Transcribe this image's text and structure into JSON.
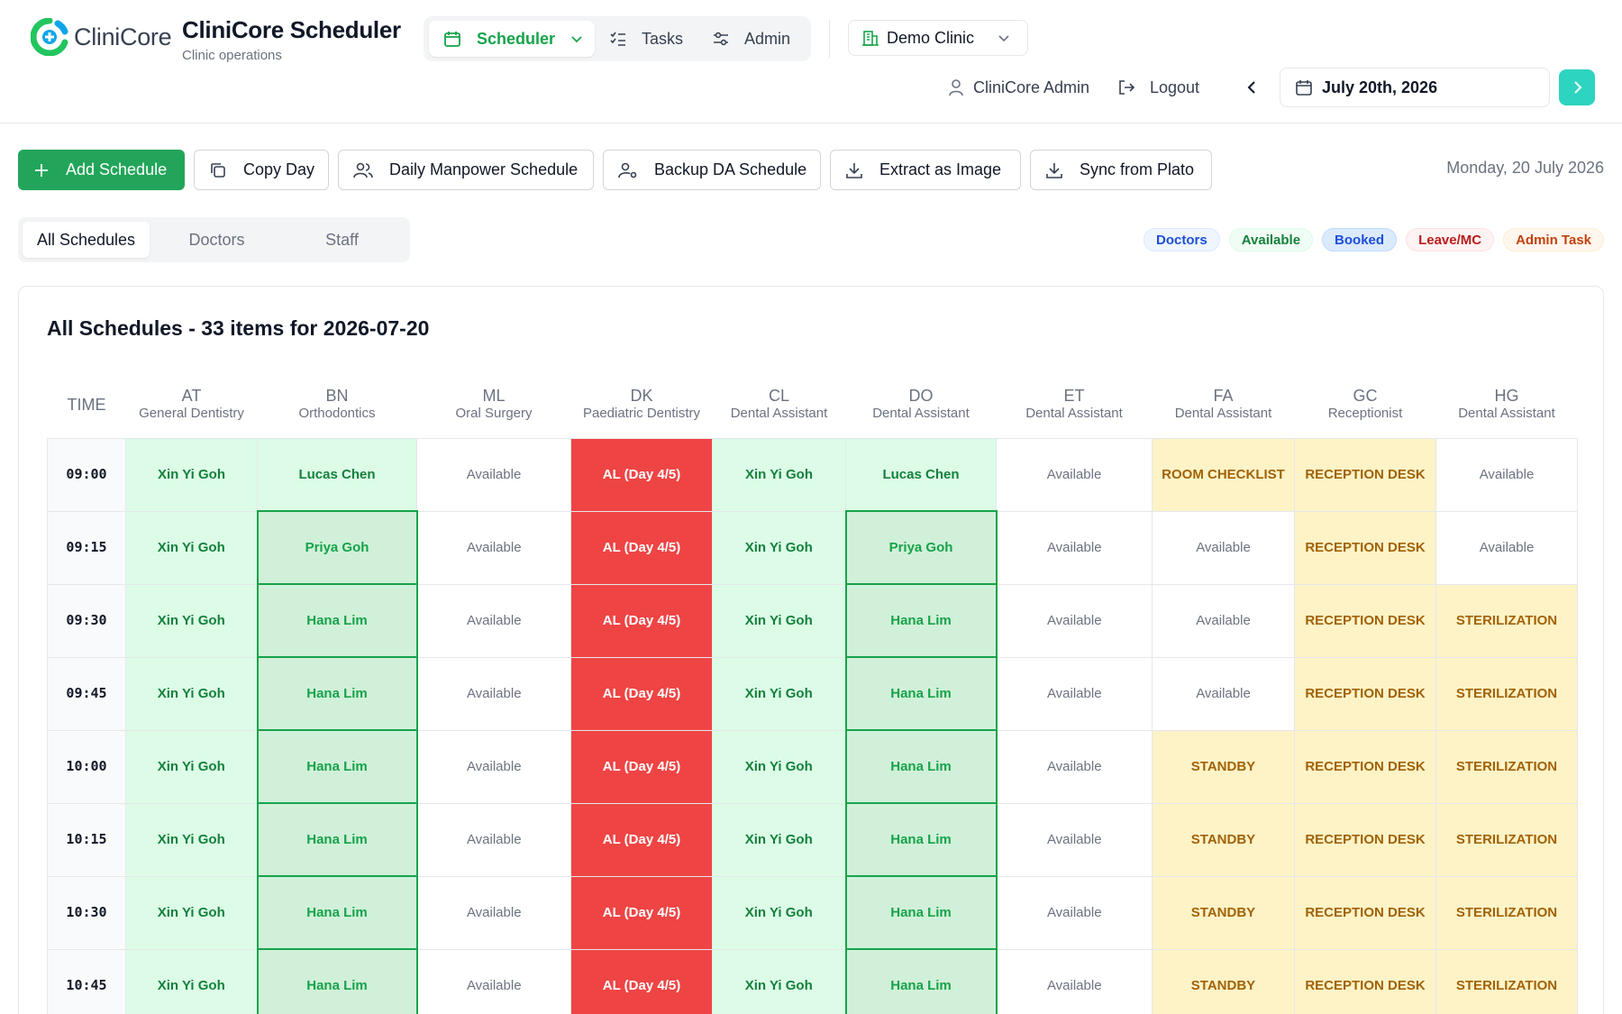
{
  "brand": {
    "logo_text": "CliniCore",
    "title": "CliniCore Scheduler",
    "subtitle": "Clinic operations"
  },
  "nav": {
    "scheduler": "Scheduler",
    "tasks": "Tasks",
    "admin": "Admin"
  },
  "clinic_select": {
    "value": "Demo Clinic"
  },
  "user": {
    "name": "CliniCore Admin",
    "logout": "Logout"
  },
  "date": {
    "value": "July 20th, 2026",
    "long": "Monday, 20 July 2026"
  },
  "toolbar": {
    "add": "Add Schedule",
    "copy": "Copy Day",
    "manpower": "Daily Manpower Schedule",
    "backup": "Backup DA Schedule",
    "extract": "Extract as Image",
    "sync": "Sync from Plato"
  },
  "filters": {
    "all": "All Schedules",
    "doctors": "Doctors",
    "staff": "Staff"
  },
  "legend": {
    "doctors": "Doctors",
    "available": "Available",
    "booked": "Booked",
    "leave": "Leave/MC",
    "admin_task": "Admin Task",
    "colors": {
      "doctors": "#1d4ed8",
      "available": "#15803d",
      "booked": "#1d4ed8",
      "leave": "#b91c1c",
      "admin": "#c2410c"
    }
  },
  "schedule": {
    "title": "All Schedules - 33 items for 2026-07-20",
    "time_header": "TIME",
    "columns": [
      {
        "code": "AT",
        "role": "General Dentistry"
      },
      {
        "code": "BN",
        "role": "Orthodontics"
      },
      {
        "code": "ML",
        "role": "Oral Surgery"
      },
      {
        "code": "DK",
        "role": "Paediatric Dentistry"
      },
      {
        "code": "CL",
        "role": "Dental Assistant"
      },
      {
        "code": "DO",
        "role": "Dental Assistant"
      },
      {
        "code": "ET",
        "role": "Dental Assistant"
      },
      {
        "code": "FA",
        "role": "Dental Assistant"
      },
      {
        "code": "GC",
        "role": "Receptionist"
      },
      {
        "code": "HG",
        "role": "Dental Assistant"
      }
    ],
    "rows": [
      {
        "time": "09:00",
        "cells": [
          {
            "text": "Xin Yi Goh",
            "type": "doc"
          },
          {
            "text": "Lucas Chen",
            "type": "doc"
          },
          {
            "text": "Available",
            "type": "avail"
          },
          {
            "text": "AL (Day 4/5)",
            "type": "leave"
          },
          {
            "text": "Xin Yi Goh",
            "type": "doc"
          },
          {
            "text": "Lucas Chen",
            "type": "doc"
          },
          {
            "text": "Available",
            "type": "avail"
          },
          {
            "text": "ROOM CHECKLIST",
            "type": "admin"
          },
          {
            "text": "RECEPTION DESK",
            "type": "admin"
          },
          {
            "text": "Available",
            "type": "avail"
          }
        ]
      },
      {
        "time": "09:15",
        "cells": [
          {
            "text": "Xin Yi Goh",
            "type": "doc"
          },
          {
            "text": "Priya Goh",
            "type": "booked"
          },
          {
            "text": "Available",
            "type": "avail"
          },
          {
            "text": "AL (Day 4/5)",
            "type": "leave"
          },
          {
            "text": "Xin Yi Goh",
            "type": "doc"
          },
          {
            "text": "Priya Goh",
            "type": "booked"
          },
          {
            "text": "Available",
            "type": "avail"
          },
          {
            "text": "Available",
            "type": "avail"
          },
          {
            "text": "RECEPTION DESK",
            "type": "admin"
          },
          {
            "text": "Available",
            "type": "avail"
          }
        ]
      },
      {
        "time": "09:30",
        "cells": [
          {
            "text": "Xin Yi Goh",
            "type": "doc"
          },
          {
            "text": "Hana Lim",
            "type": "booked"
          },
          {
            "text": "Available",
            "type": "avail"
          },
          {
            "text": "AL (Day 4/5)",
            "type": "leave"
          },
          {
            "text": "Xin Yi Goh",
            "type": "doc"
          },
          {
            "text": "Hana Lim",
            "type": "booked"
          },
          {
            "text": "Available",
            "type": "avail"
          },
          {
            "text": "Available",
            "type": "avail"
          },
          {
            "text": "RECEPTION DESK",
            "type": "admin"
          },
          {
            "text": "STERILIZATION",
            "type": "admin"
          }
        ]
      },
      {
        "time": "09:45",
        "cells": [
          {
            "text": "Xin Yi Goh",
            "type": "doc"
          },
          {
            "text": "Hana Lim",
            "type": "booked"
          },
          {
            "text": "Available",
            "type": "avail"
          },
          {
            "text": "AL (Day 4/5)",
            "type": "leave"
          },
          {
            "text": "Xin Yi Goh",
            "type": "doc"
          },
          {
            "text": "Hana Lim",
            "type": "booked"
          },
          {
            "text": "Available",
            "type": "avail"
          },
          {
            "text": "Available",
            "type": "avail"
          },
          {
            "text": "RECEPTION DESK",
            "type": "admin"
          },
          {
            "text": "STERILIZATION",
            "type": "admin"
          }
        ]
      },
      {
        "time": "10:00",
        "cells": [
          {
            "text": "Xin Yi Goh",
            "type": "doc"
          },
          {
            "text": "Hana Lim",
            "type": "booked"
          },
          {
            "text": "Available",
            "type": "avail"
          },
          {
            "text": "AL (Day 4/5)",
            "type": "leave"
          },
          {
            "text": "Xin Yi Goh",
            "type": "doc"
          },
          {
            "text": "Hana Lim",
            "type": "booked"
          },
          {
            "text": "Available",
            "type": "avail"
          },
          {
            "text": "STANDBY",
            "type": "admin"
          },
          {
            "text": "RECEPTION DESK",
            "type": "admin"
          },
          {
            "text": "STERILIZATION",
            "type": "admin"
          }
        ]
      },
      {
        "time": "10:15",
        "cells": [
          {
            "text": "Xin Yi Goh",
            "type": "doc"
          },
          {
            "text": "Hana Lim",
            "type": "booked"
          },
          {
            "text": "Available",
            "type": "avail"
          },
          {
            "text": "AL (Day 4/5)",
            "type": "leave"
          },
          {
            "text": "Xin Yi Goh",
            "type": "doc"
          },
          {
            "text": "Hana Lim",
            "type": "booked"
          },
          {
            "text": "Available",
            "type": "avail"
          },
          {
            "text": "STANDBY",
            "type": "admin"
          },
          {
            "text": "RECEPTION DESK",
            "type": "admin"
          },
          {
            "text": "STERILIZATION",
            "type": "admin"
          }
        ]
      },
      {
        "time": "10:30",
        "cells": [
          {
            "text": "Xin Yi Goh",
            "type": "doc"
          },
          {
            "text": "Hana Lim",
            "type": "booked"
          },
          {
            "text": "Available",
            "type": "avail"
          },
          {
            "text": "AL (Day 4/5)",
            "type": "leave"
          },
          {
            "text": "Xin Yi Goh",
            "type": "doc"
          },
          {
            "text": "Hana Lim",
            "type": "booked"
          },
          {
            "text": "Available",
            "type": "avail"
          },
          {
            "text": "STANDBY",
            "type": "admin"
          },
          {
            "text": "RECEPTION DESK",
            "type": "admin"
          },
          {
            "text": "STERILIZATION",
            "type": "admin"
          }
        ]
      },
      {
        "time": "10:45",
        "cells": [
          {
            "text": "Xin Yi Goh",
            "type": "doc"
          },
          {
            "text": "Hana Lim",
            "type": "booked"
          },
          {
            "text": "Available",
            "type": "avail"
          },
          {
            "text": "AL (Day 4/5)",
            "type": "leave"
          },
          {
            "text": "Xin Yi Goh",
            "type": "doc"
          },
          {
            "text": "Hana Lim",
            "type": "booked"
          },
          {
            "text": "Available",
            "type": "avail"
          },
          {
            "text": "STANDBY",
            "type": "admin"
          },
          {
            "text": "RECEPTION DESK",
            "type": "admin"
          },
          {
            "text": "STERILIZATION",
            "type": "admin"
          }
        ]
      }
    ]
  }
}
